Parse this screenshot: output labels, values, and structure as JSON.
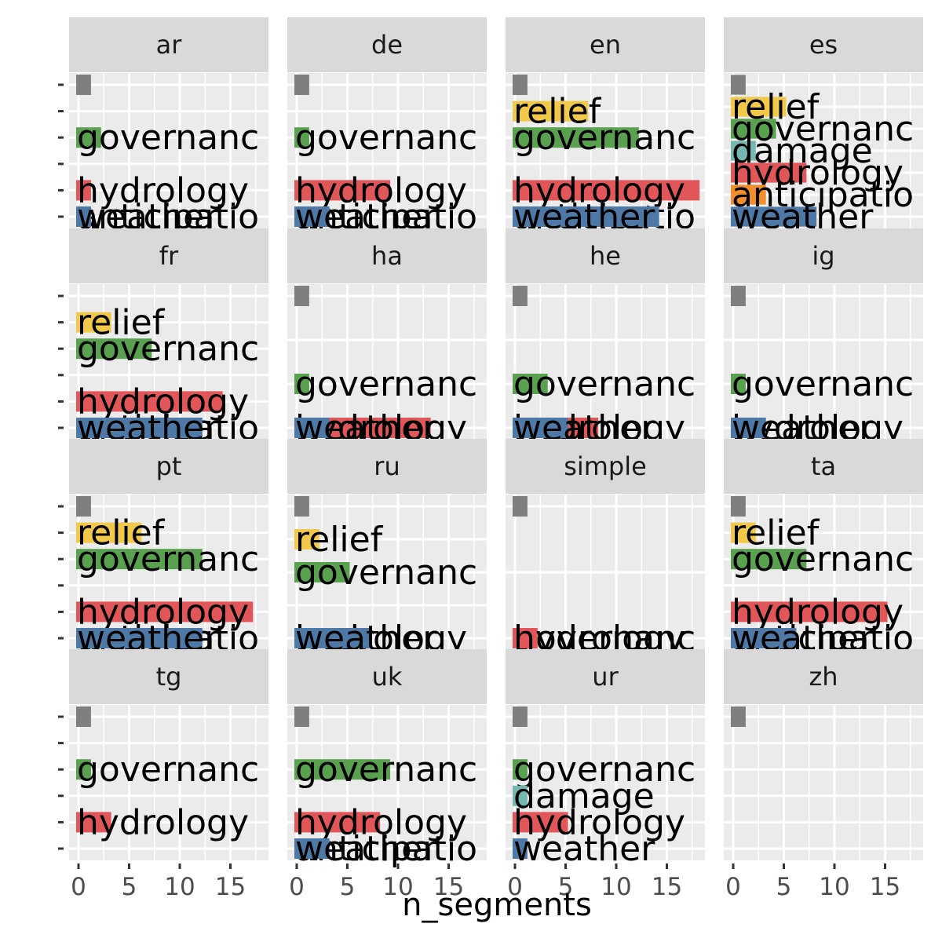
{
  "chart_data": {
    "type": "bar",
    "orientation": "horizontal",
    "faceted": true,
    "xlabel": "n_segments",
    "ylabel": "",
    "xlim": [
      -1,
      19
    ],
    "x_ticks": [
      "0",
      "5",
      "10",
      "15"
    ],
    "grid": true,
    "legend": "none",
    "categories": [
      "NA",
      "relief",
      "governance",
      "damage",
      "hydrology",
      "anticipation",
      "weather"
    ],
    "category_labels": {
      "NA": "",
      "relief": "relief",
      "governance": "governanc",
      "damage": "damage",
      "hydrology": "hydrology",
      "anticipation": "anticipatio",
      "weather": "weather"
    },
    "colors": {
      "NA": "#7f7f7f",
      "relief": "#f2c84b",
      "governance": "#59a14f",
      "damage": "#76b7b2",
      "hydrology": "#e15759",
      "anticipation": "#f28e2b",
      "weather": "#4e79a7"
    },
    "facets": [
      {
        "name": "ar",
        "rows": 6,
        "bars": [
          {
            "category": "NA",
            "row": 1,
            "value": 1
          },
          {
            "category": "governance",
            "row": 3,
            "value": 2
          },
          {
            "category": "hydrology",
            "row": 5,
            "value": 1
          },
          {
            "category": "anticipation",
            "row": 6,
            "value": 1
          },
          {
            "category": "weather",
            "row": 7,
            "value": 1
          }
        ]
      },
      {
        "name": "de",
        "rows": 6,
        "bars": [
          {
            "category": "NA",
            "row": 1,
            "value": 1
          },
          {
            "category": "governance",
            "row": 3,
            "value": 1
          },
          {
            "category": "hydrology",
            "row": 5,
            "value": 9
          },
          {
            "category": "anticipation",
            "row": 6,
            "value": 2
          },
          {
            "category": "weather",
            "row": 7,
            "value": 3
          }
        ]
      },
      {
        "name": "en",
        "rows": 6,
        "bars": [
          {
            "category": "NA",
            "row": 1,
            "value": 1
          },
          {
            "category": "relief",
            "row": 2,
            "value": 7
          },
          {
            "category": "governance",
            "row": 3,
            "value": 12
          },
          {
            "category": "hydrology",
            "row": 5,
            "value": 18
          },
          {
            "category": "anticipation",
            "row": 6,
            "value": 4
          },
          {
            "category": "weather",
            "row": 7,
            "value": 14
          }
        ]
      },
      {
        "name": "es",
        "rows": 7,
        "bars": [
          {
            "category": "NA",
            "row": 1,
            "value": 1
          },
          {
            "category": "relief",
            "row": 2,
            "value": 5
          },
          {
            "category": "governance",
            "row": 3,
            "value": 4
          },
          {
            "category": "damage",
            "row": 4,
            "value": 2
          },
          {
            "category": "hydrology",
            "row": 5,
            "value": 7
          },
          {
            "category": "anticipation",
            "row": 6,
            "value": 3
          },
          {
            "category": "weather",
            "row": 7,
            "value": 8
          }
        ]
      },
      {
        "name": "fr",
        "rows": 6,
        "bars": [
          {
            "category": "relief",
            "row": 2,
            "value": 3
          },
          {
            "category": "governance",
            "row": 3,
            "value": 7
          },
          {
            "category": "hydrology",
            "row": 5,
            "value": 14
          },
          {
            "category": "anticipation",
            "row": 6,
            "value": 2
          },
          {
            "category": "weather",
            "row": 7,
            "value": 12
          }
        ]
      },
      {
        "name": "ha",
        "rows": 4,
        "bars": [
          {
            "category": "NA",
            "row": 1,
            "value": 1
          },
          {
            "category": "governance",
            "row": 3,
            "value": 1
          },
          {
            "category": "hydrology",
            "row": 5,
            "value": 13
          },
          {
            "category": "weather",
            "row": 7,
            "value": 3
          }
        ]
      },
      {
        "name": "he",
        "rows": 4,
        "bars": [
          {
            "category": "NA",
            "row": 1,
            "value": 1
          },
          {
            "category": "governance",
            "row": 3,
            "value": 3
          },
          {
            "category": "hydrology",
            "row": 5,
            "value": 8
          },
          {
            "category": "weather",
            "row": 7,
            "value": 5
          }
        ]
      },
      {
        "name": "ig",
        "rows": 4,
        "bars": [
          {
            "category": "NA",
            "row": 1,
            "value": 1
          },
          {
            "category": "governance",
            "row": 3,
            "value": 1
          },
          {
            "category": "hydrology",
            "row": 5,
            "value": 1
          },
          {
            "category": "weather",
            "row": 7,
            "value": 3
          }
        ]
      },
      {
        "name": "pt",
        "rows": 6,
        "bars": [
          {
            "category": "NA",
            "row": 1,
            "value": 1
          },
          {
            "category": "relief",
            "row": 2,
            "value": 6
          },
          {
            "category": "governance",
            "row": 3,
            "value": 12
          },
          {
            "category": "hydrology",
            "row": 5,
            "value": 17
          },
          {
            "category": "anticipation",
            "row": 6,
            "value": 7
          },
          {
            "category": "weather",
            "row": 7,
            "value": 12
          }
        ]
      },
      {
        "name": "ru",
        "rows": 5,
        "bars": [
          {
            "category": "NA",
            "row": 1,
            "value": 1
          },
          {
            "category": "relief",
            "row": 2,
            "value": 2
          },
          {
            "category": "governance",
            "row": 3,
            "value": 5
          },
          {
            "category": "hydrology",
            "row": 5,
            "value": 7
          },
          {
            "category": "weather",
            "row": 7,
            "value": 7
          }
        ]
      },
      {
        "name": "simple",
        "rows": 3,
        "bars": [
          {
            "category": "NA",
            "row": 1,
            "value": 1
          },
          {
            "category": "governance",
            "row": 3,
            "value": 1
          },
          {
            "category": "hydrology",
            "row": 5,
            "value": 2
          }
        ]
      },
      {
        "name": "ta",
        "rows": 6,
        "bars": [
          {
            "category": "NA",
            "row": 1,
            "value": 1
          },
          {
            "category": "relief",
            "row": 2,
            "value": 2
          },
          {
            "category": "governance",
            "row": 3,
            "value": 7
          },
          {
            "category": "hydrology",
            "row": 5,
            "value": 15
          },
          {
            "category": "anticipation",
            "row": 6,
            "value": 1
          },
          {
            "category": "weather",
            "row": 7,
            "value": 6
          }
        ]
      },
      {
        "name": "tg",
        "rows": 6,
        "bars": [
          {
            "category": "NA",
            "row": 1,
            "value": 1
          },
          {
            "category": "governance",
            "row": 3,
            "value": 1
          },
          {
            "category": "hydrology",
            "row": 5,
            "value": 3
          }
        ]
      },
      {
        "name": "uk",
        "rows": 6,
        "bars": [
          {
            "category": "NA",
            "row": 1,
            "value": 1
          },
          {
            "category": "governance",
            "row": 3,
            "value": 9
          },
          {
            "category": "hydrology",
            "row": 5,
            "value": 8
          },
          {
            "category": "anticipation",
            "row": 6,
            "value": 1
          },
          {
            "category": "weather",
            "row": 7,
            "value": 3
          }
        ]
      },
      {
        "name": "ur",
        "rows": 6,
        "bars": [
          {
            "category": "NA",
            "row": 1,
            "value": 1
          },
          {
            "category": "governance",
            "row": 3,
            "value": 1
          },
          {
            "category": "damage",
            "row": 4,
            "value": 1
          },
          {
            "category": "hydrology",
            "row": 5,
            "value": 5
          },
          {
            "category": "weather",
            "row": 7,
            "value": 1
          }
        ]
      },
      {
        "name": "zh",
        "rows": 6,
        "bars": [
          {
            "category": "NA",
            "row": 1,
            "value": 1
          }
        ]
      }
    ]
  }
}
